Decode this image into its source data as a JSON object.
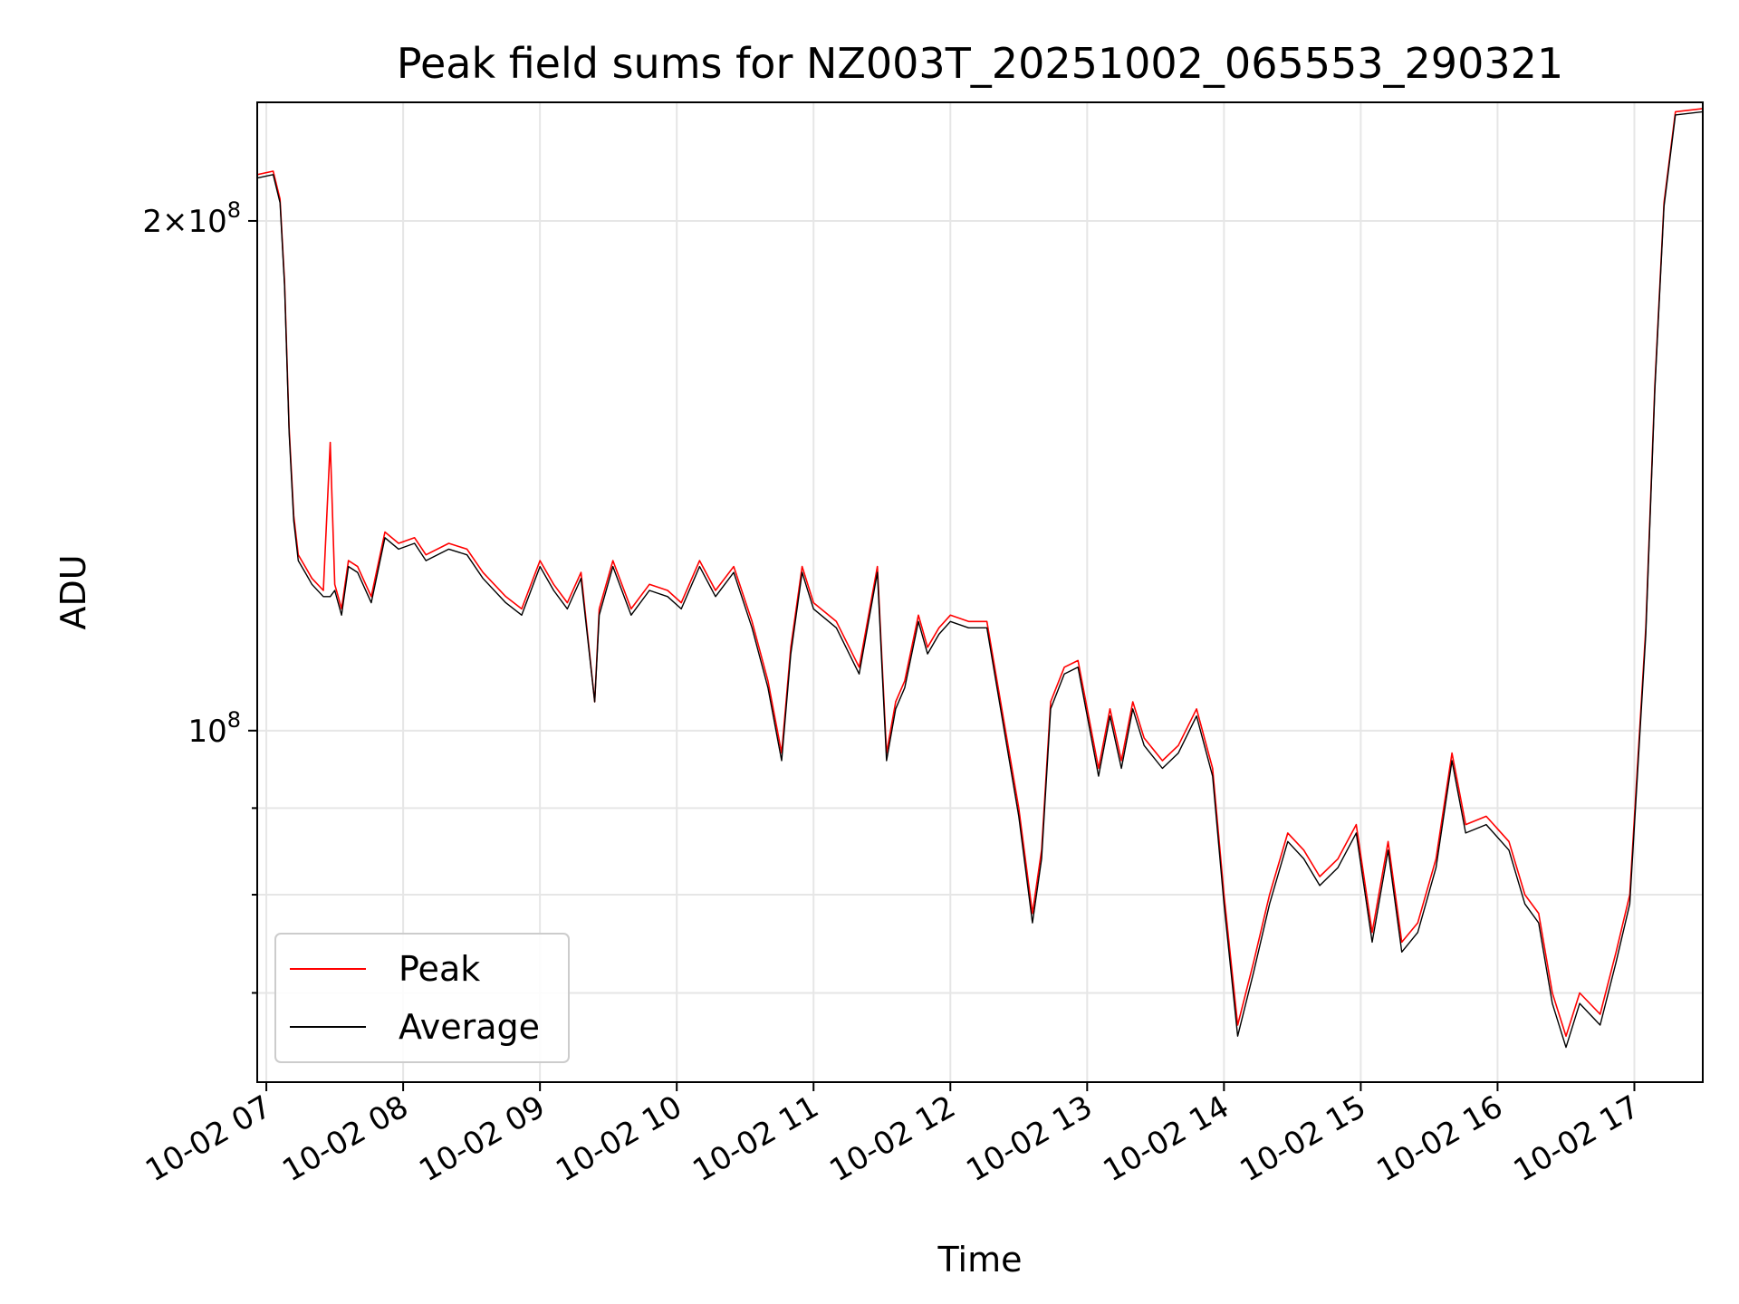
{
  "chart_data": {
    "type": "line",
    "title": "Peak field sums for NZ003T_20251002_065553_290321",
    "xlabel": "Time",
    "ylabel": "ADU",
    "y_scale": "log",
    "x_range": [
      "2025-10-02 06:56",
      "2025-10-02 17:30"
    ],
    "ylim": [
      62000000,
      235000000
    ],
    "grid": true,
    "legend_position": "lower-left",
    "x_tick_labels": [
      "10-02 07",
      "10-02 08",
      "10-02 09",
      "10-02 10",
      "10-02 11",
      "10-02 12",
      "10-02 13",
      "10-02 14",
      "10-02 15",
      "10-02 16",
      "10-02 17"
    ],
    "x_tick_times": [
      "2025-10-02 07:00",
      "2025-10-02 08:00",
      "2025-10-02 09:00",
      "2025-10-02 10:00",
      "2025-10-02 11:00",
      "2025-10-02 12:00",
      "2025-10-02 13:00",
      "2025-10-02 14:00",
      "2025-10-02 15:00",
      "2025-10-02 16:00",
      "2025-10-02 17:00"
    ],
    "y_major_ticks": [
      {
        "value": 100000000,
        "mantissa": "",
        "exponent": "8"
      },
      {
        "value": 200000000,
        "mantissa": "2",
        "exponent": "8"
      }
    ],
    "y_minor_ticks": [
      70000000,
      80000000,
      90000000
    ],
    "x": [
      "2025-10-02 06:56",
      "2025-10-02 07:03",
      "2025-10-02 07:06",
      "2025-10-02 07:08",
      "2025-10-02 07:10",
      "2025-10-02 07:12",
      "2025-10-02 07:14",
      "2025-10-02 07:17",
      "2025-10-02 07:20",
      "2025-10-02 07:25",
      "2025-10-02 07:28",
      "2025-10-02 07:30",
      "2025-10-02 07:33",
      "2025-10-02 07:36",
      "2025-10-02 07:40",
      "2025-10-02 07:46",
      "2025-10-02 07:52",
      "2025-10-02 07:58",
      "2025-10-02 08:05",
      "2025-10-02 08:10",
      "2025-10-02 08:20",
      "2025-10-02 08:28",
      "2025-10-02 08:35",
      "2025-10-02 08:45",
      "2025-10-02 08:52",
      "2025-10-02 09:00",
      "2025-10-02 09:06",
      "2025-10-02 09:12",
      "2025-10-02 09:18",
      "2025-10-02 09:24",
      "2025-10-02 09:26",
      "2025-10-02 09:32",
      "2025-10-02 09:40",
      "2025-10-02 09:48",
      "2025-10-02 09:56",
      "2025-10-02 10:02",
      "2025-10-02 10:10",
      "2025-10-02 10:17",
      "2025-10-02 10:25",
      "2025-10-02 10:33",
      "2025-10-02 10:40",
      "2025-10-02 10:46",
      "2025-10-02 10:50",
      "2025-10-02 10:55",
      "2025-10-02 11:00",
      "2025-10-02 11:10",
      "2025-10-02 11:20",
      "2025-10-02 11:28",
      "2025-10-02 11:32",
      "2025-10-02 11:36",
      "2025-10-02 11:40",
      "2025-10-02 11:46",
      "2025-10-02 11:50",
      "2025-10-02 11:55",
      "2025-10-02 12:00",
      "2025-10-02 12:08",
      "2025-10-02 12:16",
      "2025-10-02 12:30",
      "2025-10-02 12:36",
      "2025-10-02 12:40",
      "2025-10-02 12:44",
      "2025-10-02 12:50",
      "2025-10-02 12:56",
      "2025-10-02 13:05",
      "2025-10-02 13:10",
      "2025-10-02 13:15",
      "2025-10-02 13:20",
      "2025-10-02 13:25",
      "2025-10-02 13:33",
      "2025-10-02 13:40",
      "2025-10-02 13:48",
      "2025-10-02 13:55",
      "2025-10-02 14:00",
      "2025-10-02 14:06",
      "2025-10-02 14:13",
      "2025-10-02 14:20",
      "2025-10-02 14:28",
      "2025-10-02 14:35",
      "2025-10-02 14:42",
      "2025-10-02 14:50",
      "2025-10-02 14:58",
      "2025-10-02 15:05",
      "2025-10-02 15:12",
      "2025-10-02 15:18",
      "2025-10-02 15:25",
      "2025-10-02 15:33",
      "2025-10-02 15:40",
      "2025-10-02 15:46",
      "2025-10-02 15:55",
      "2025-10-02 16:05",
      "2025-10-02 16:12",
      "2025-10-02 16:18",
      "2025-10-02 16:24",
      "2025-10-02 16:30",
      "2025-10-02 16:36",
      "2025-10-02 16:45",
      "2025-10-02 16:52",
      "2025-10-02 16:58",
      "2025-10-02 17:05",
      "2025-10-02 17:09",
      "2025-10-02 17:13",
      "2025-10-02 17:18",
      "2025-10-02 17:30"
    ],
    "series": [
      {
        "name": "Peak",
        "color": "#ff0000",
        "values": [
          213000000,
          214000000,
          206000000,
          184000000,
          151000000,
          134000000,
          127000000,
          125000000,
          123000000,
          121000000,
          148000000,
          122000000,
          118000000,
          126000000,
          125000000,
          120000000,
          131000000,
          129000000,
          130000000,
          127000000,
          129000000,
          128000000,
          124000000,
          120000000,
          118000000,
          126000000,
          122000000,
          119000000,
          124000000,
          104000000,
          118000000,
          126000000,
          118000000,
          122000000,
          121000000,
          119000000,
          126000000,
          121000000,
          125000000,
          116000000,
          107000000,
          97000000,
          112000000,
          125000000,
          119000000,
          116000000,
          109000000,
          125000000,
          97000000,
          104000000,
          107000000,
          117000000,
          112000000,
          115000000,
          117000000,
          116000000,
          116000000,
          90000000,
          78000000,
          85000000,
          104000000,
          109000000,
          110000000,
          95000000,
          103000000,
          96000000,
          104000000,
          99000000,
          96000000,
          98000000,
          103000000,
          95000000,
          80000000,
          67000000,
          73000000,
          80000000,
          87000000,
          85000000,
          82000000,
          84000000,
          88000000,
          76000000,
          86000000,
          75000000,
          77000000,
          84000000,
          97000000,
          88000000,
          89000000,
          86000000,
          80000000,
          78000000,
          70000000,
          66000000,
          70000000,
          68000000,
          74000000,
          80000000,
          115000000,
          160000000,
          205000000,
          232000000,
          233000000
        ]
      },
      {
        "name": "Average",
        "color": "#000000",
        "values": [
          212000000,
          213000000,
          205000000,
          183000000,
          150000000,
          133000000,
          126000000,
          124000000,
          122000000,
          120000000,
          120000000,
          121000000,
          117000000,
          125000000,
          124000000,
          119000000,
          130000000,
          128000000,
          129000000,
          126000000,
          128000000,
          127000000,
          123000000,
          119000000,
          117000000,
          125000000,
          121000000,
          118000000,
          123000000,
          104000000,
          117000000,
          125000000,
          117000000,
          121000000,
          120000000,
          118000000,
          125000000,
          120000000,
          124000000,
          115000000,
          106000000,
          96000000,
          111000000,
          124000000,
          118000000,
          115000000,
          108000000,
          124000000,
          96000000,
          103000000,
          106000000,
          116000000,
          111000000,
          114000000,
          116000000,
          115000000,
          115000000,
          89000000,
          77000000,
          84000000,
          103000000,
          108000000,
          109000000,
          94000000,
          102000000,
          95000000,
          103000000,
          98000000,
          95000000,
          97000000,
          102000000,
          94000000,
          79000000,
          66000000,
          72000000,
          79000000,
          86000000,
          84000000,
          81000000,
          83000000,
          87000000,
          75000000,
          85000000,
          74000000,
          76000000,
          83000000,
          96000000,
          87000000,
          88000000,
          85000000,
          79000000,
          77000000,
          69000000,
          65000000,
          69000000,
          67000000,
          73000000,
          79000000,
          114000000,
          159000000,
          204000000,
          231000000,
          232000000
        ]
      }
    ]
  }
}
